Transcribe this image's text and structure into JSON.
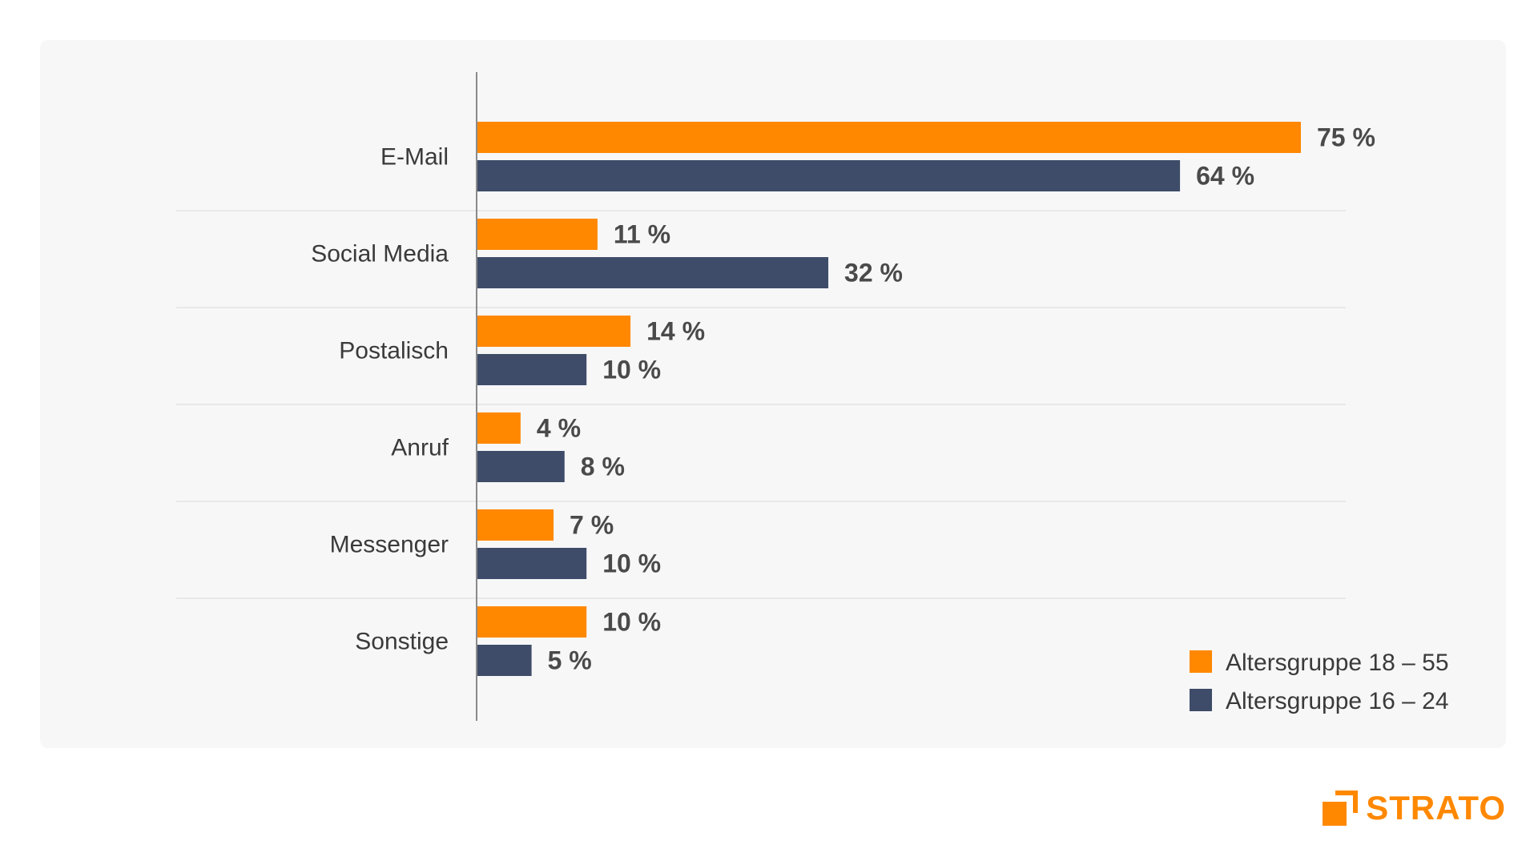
{
  "chart_data": {
    "type": "bar",
    "orientation": "horizontal",
    "categories": [
      "E-Mail",
      "Social Media",
      "Postalisch",
      "Anruf",
      "Messenger",
      "Sonstige"
    ],
    "series": [
      {
        "name": "Altersgruppe 18 – 55",
        "color": "#ff8800",
        "values": [
          75,
          11,
          14,
          4,
          7,
          10
        ]
      },
      {
        "name": "Altersgruppe 16 – 24",
        "color": "#3e4c69",
        "values": [
          64,
          32,
          10,
          8,
          10,
          5
        ]
      }
    ],
    "value_suffix": " %",
    "xlim": [
      0,
      100
    ],
    "grid": true,
    "legend_position": "bottom-right",
    "title": "",
    "xlabel": "",
    "ylabel": ""
  },
  "brand": {
    "name": "STRATO",
    "color": "#ff8800"
  }
}
